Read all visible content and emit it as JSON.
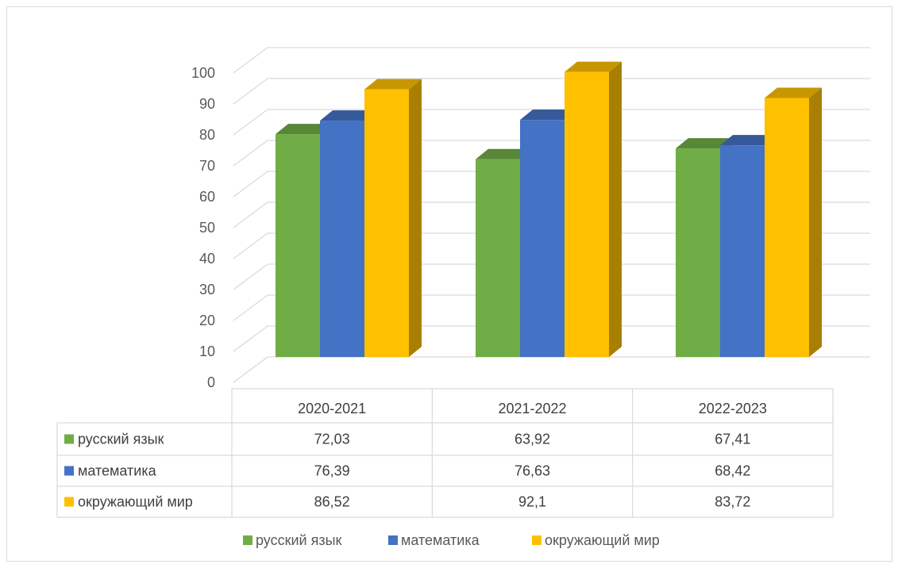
{
  "chart_data": {
    "type": "bar",
    "style": "3d-clustered-column-with-data-table",
    "categories": [
      "2020-2021",
      "2021-2022",
      "2022-2023"
    ],
    "series": [
      {
        "name": "русский язык",
        "color": "#70ad47",
        "values": [
          72.03,
          63.92,
          67.41
        ],
        "labels": [
          "72,03",
          "63,92",
          "67,41"
        ]
      },
      {
        "name": "математика",
        "color": "#4472c4",
        "values": [
          76.39,
          76.63,
          68.42
        ],
        "labels": [
          "76,39",
          "76,63",
          "68,42"
        ]
      },
      {
        "name": "окружающий мир",
        "color": "#ffc000",
        "values": [
          86.52,
          92.1,
          83.72
        ],
        "labels": [
          "86,52",
          "92,1",
          "83,72"
        ]
      }
    ],
    "y_ticks": [
      "0",
      "10",
      "20",
      "30",
      "40",
      "50",
      "60",
      "70",
      "80",
      "90",
      "100"
    ],
    "ylim": [
      0,
      100
    ],
    "grid": true,
    "legend": "bottom"
  }
}
